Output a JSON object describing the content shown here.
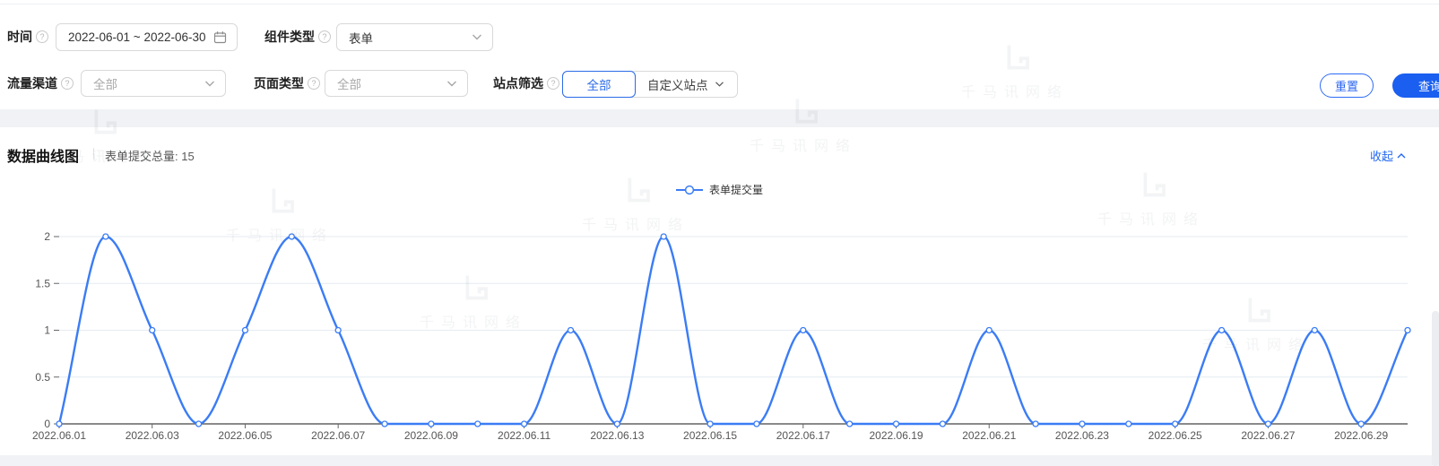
{
  "filters": {
    "time": {
      "label": "时间",
      "value": "2022-06-01 ~ 2022-06-30"
    },
    "component_type": {
      "label": "组件类型",
      "value": "表单"
    },
    "traffic_channel": {
      "label": "流量渠道",
      "value": "全部"
    },
    "page_type": {
      "label": "页面类型",
      "value": "全部"
    },
    "site_filter": {
      "label": "站点筛选",
      "option_all": "全部",
      "option_custom": "自定义站点"
    },
    "reset_label": "重置",
    "query_label": "查询"
  },
  "chart_section": {
    "title": "数据曲线图",
    "summary": "表单提交总量: 15",
    "collapse_label": "收起"
  },
  "watermark_text": "千马讯网络",
  "colors": {
    "accent_blue": "#2b65f0",
    "line_blue": "#3b7cf5",
    "axis_line": "#444444",
    "grid_line": "#e6ebf2",
    "axis_text": "#555555"
  },
  "chart_data": {
    "type": "line",
    "smooth": true,
    "title": "数据曲线图",
    "legend_position": "top-center",
    "grid": "horizontal",
    "total": 15,
    "ylim": [
      0,
      2
    ],
    "y_ticks": [
      0,
      0.5,
      1,
      1.5,
      2
    ],
    "x_tick_every": 2,
    "categories": [
      "2022.06.01",
      "2022.06.02",
      "2022.06.03",
      "2022.06.04",
      "2022.06.05",
      "2022.06.06",
      "2022.06.07",
      "2022.06.08",
      "2022.06.09",
      "2022.06.10",
      "2022.06.11",
      "2022.06.12",
      "2022.06.13",
      "2022.06.14",
      "2022.06.15",
      "2022.06.16",
      "2022.06.17",
      "2022.06.18",
      "2022.06.19",
      "2022.06.20",
      "2022.06.21",
      "2022.06.22",
      "2022.06.23",
      "2022.06.24",
      "2022.06.25",
      "2022.06.26",
      "2022.06.27",
      "2022.06.28",
      "2022.06.29",
      "2022.06.30"
    ],
    "series": [
      {
        "name": "表单提交量",
        "values": [
          0,
          2,
          1,
          0,
          1,
          2,
          1,
          0,
          0,
          0,
          0,
          1,
          0,
          2,
          0,
          0,
          1,
          0,
          0,
          0,
          1,
          0,
          0,
          0,
          0,
          1,
          0,
          1,
          0,
          1
        ]
      }
    ]
  }
}
